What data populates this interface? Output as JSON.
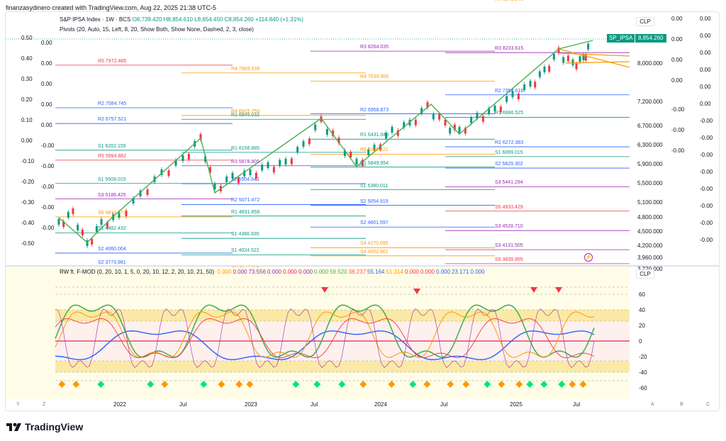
{
  "header": {
    "title": "finanzasydinero created with TradingView.com, Aug 22, 2025 21:38 UTC-5"
  },
  "legend": {
    "symbol": "S&P IPSA Index · 1W · BCS",
    "ohlc": "O8,739.420  H8,854.610  L8,654.450  C8,854.260  +114.840 (+1.31%)",
    "pivots": "Pivots (20, Auto, 15, Left, 8, 20, Show Both, Show None, Dashed, 2, 3, close)"
  },
  "indicator_legend": {
    "name": "RW ft. F-MOD (0, 20, 10, 1, 5, 0, 20, 10, 12, 2, 20, 10, 21, 50)",
    "values": [
      {
        "text": "0.000",
        "color": "#ff9800"
      },
      {
        "text": "0.000",
        "color": "#9c27b0"
      },
      {
        "text": "73.556",
        "color": "#9c27b0"
      },
      {
        "text": "0.000",
        "color": "#9c27b0"
      },
      {
        "text": "0.000",
        "color": "#e91e63"
      },
      {
        "text": "0.000",
        "color": "#9c27b0"
      },
      {
        "text": "0.000",
        "color": "#4caf50"
      },
      {
        "text": "59.520",
        "color": "#4caf50"
      },
      {
        "text": "38.237",
        "color": "#ff5252"
      },
      {
        "text": "55.164",
        "color": "#2962ff"
      },
      {
        "text": "51.314",
        "color": "#ff9800"
      },
      {
        "text": "0.000",
        "color": "#f23645"
      },
      {
        "text": "0.000",
        "color": "#f23645"
      },
      {
        "text": "0.000",
        "color": "#2962ff"
      },
      {
        "text": "23.171",
        "color": "#2962ff"
      },
      {
        "text": "0.000",
        "color": "#2962ff"
      }
    ]
  },
  "price_axis": {
    "currency": "CLP",
    "symbol_tag": "SP_IPSA",
    "last_price": "8,854.260",
    "labels": [
      "8,000.000",
      "7,200.000",
      "6,700.000",
      "6,300.000",
      "5,900.000",
      "5,500.000",
      "5,100.000",
      "4,800.000",
      "4,500.000",
      "4,200.000",
      "3,960.000",
      "3,720.000"
    ],
    "col1": [
      "0.00",
      "0.00",
      "0.00",
      "0.00",
      "-0.00",
      "-0.00",
      "-0.00"
    ],
    "col2": [
      "0.00",
      "0.00",
      "0.00",
      "0.00",
      "0.00",
      "0.00",
      "-0.00",
      "-0.00",
      "-0.00",
      "-0.00",
      "-0.00",
      "-0.00",
      "-0.00",
      "-0.00"
    ]
  },
  "left_axis": [
    "0.50",
    "0.40",
    "0.30",
    "0.20",
    "0.10",
    "0.00",
    "-0.10",
    "-0.20",
    "-0.30",
    "-0.40",
    "-0.50"
  ],
  "left_axis2": [
    "0.00",
    "0.00",
    "0.00",
    "0.00",
    "0.00",
    "-0.00",
    "-0.00",
    "-0.00",
    "-0.00",
    "-0.00"
  ],
  "indicator_axis": {
    "currency": "CLP",
    "labels": [
      "60",
      "40",
      "20",
      "0",
      "-20",
      "-40",
      "-60"
    ]
  },
  "time_axis": [
    "2022",
    "Jul",
    "2023",
    "Jul",
    "2024",
    "Jul",
    "2025",
    "Jul"
  ],
  "axis_buttons": [
    "Y",
    "Z",
    "A",
    "B",
    "C"
  ],
  "pivot_labels": [
    {
      "t": "R4",
      "v": "9641.546",
      "c": "#ff9800"
    },
    {
      "t": "R4",
      "v": "9249.345",
      "c": "#ff9800"
    },
    {
      "t": "R3",
      "v": "8264.035",
      "c": "#9c27b0"
    },
    {
      "t": "R3",
      "v": "8233.615",
      "c": "#9c27b0"
    },
    {
      "t": "R5",
      "v": "7972.485",
      "c": "#f23645"
    },
    {
      "t": "R4",
      "v": "7809.939",
      "c": "#ff9800"
    },
    {
      "t": "R4",
      "v": "7639.906",
      "c": "#ff9800"
    },
    {
      "t": "R2",
      "v": "7354.618",
      "c": "#2962ff"
    },
    {
      "t": "R2",
      "v": "7084.745",
      "c": "#2962ff"
    },
    {
      "t": "R4",
      "v": "6925.755",
      "c": "#ff9800"
    },
    {
      "t": "R2",
      "v": "6958.873",
      "c": "#2962ff"
    },
    {
      "t": "R1",
      "v": "6886.525",
      "c": "#089981"
    },
    {
      "t": "R2",
      "v": "6757.521",
      "c": "#2962ff"
    },
    {
      "t": "R1",
      "v": "6845.032",
      "c": "#089981"
    },
    {
      "t": "R1",
      "v": "6431.040",
      "c": "#089981"
    },
    {
      "t": "R2",
      "v": "6272.383",
      "c": "#2962ff"
    },
    {
      "t": "S1",
      "v": "6202.155",
      "c": "#089981"
    },
    {
      "t": "R1",
      "v": "6156.885",
      "c": "#089981"
    },
    {
      "t": "R6",
      "v": "6118.422",
      "c": "#ff9800"
    },
    {
      "t": "S1",
      "v": "6069.015",
      "c": "#089981"
    },
    {
      "t": "R5",
      "v": "5994.882",
      "c": "#f23645"
    },
    {
      "t": "R3",
      "v": "5878.805",
      "c": "#9c27b0"
    },
    {
      "t": "R1",
      "v": "5849.954",
      "c": "#089981"
    },
    {
      "t": "S2",
      "v": "5829.302",
      "c": "#2962ff"
    },
    {
      "t": "S1",
      "v": "5509.015",
      "c": "#089981"
    },
    {
      "t": "S2",
      "v": "5504.643",
      "c": "#2962ff"
    },
    {
      "t": "S1",
      "v": "5380.011",
      "c": "#089981"
    },
    {
      "t": "S3",
      "v": "5441.294",
      "c": "#9c27b0"
    },
    {
      "t": "S3",
      "v": "5186.425",
      "c": "#9c27b0"
    },
    {
      "t": "R2",
      "v": "5071.472",
      "c": "#2962ff"
    },
    {
      "t": "S2",
      "v": "5054.919",
      "c": "#2962ff"
    },
    {
      "t": "S5",
      "v": "4933.429",
      "c": "#f23645"
    },
    {
      "t": "S6",
      "v": "4813.572",
      "c": "#ff9800"
    },
    {
      "t": "R1",
      "v": "4831.858",
      "c": "#089981"
    },
    {
      "t": "S2",
      "v": "4601.597",
      "c": "#2962ff"
    },
    {
      "t": "S3",
      "v": "4528.710",
      "c": "#9c27b0"
    },
    {
      "t": "S1",
      "v": "4482.432",
      "c": "#089981"
    },
    {
      "t": "S1",
      "v": "4366.935",
      "c": "#089981"
    },
    {
      "t": "S4",
      "v": "4170.695",
      "c": "#ff9800"
    },
    {
      "t": "S3",
      "v": "4131.505",
      "c": "#9c27b0"
    },
    {
      "t": "S2",
      "v": "4060.004",
      "c": "#2962ff"
    },
    {
      "t": "S1",
      "v": "4024.522",
      "c": "#089981"
    },
    {
      "t": "S4",
      "v": "4002.901",
      "c": "#ff9800"
    },
    {
      "t": "S5",
      "v": "3839.955",
      "c": "#f23645"
    },
    {
      "t": "S2",
      "v": "3773.981",
      "c": "#2962ff"
    },
    {
      "t": "S6",
      "v": "3677.408",
      "c": "#ff9800"
    }
  ],
  "brand": {
    "name": "TradingView"
  }
}
